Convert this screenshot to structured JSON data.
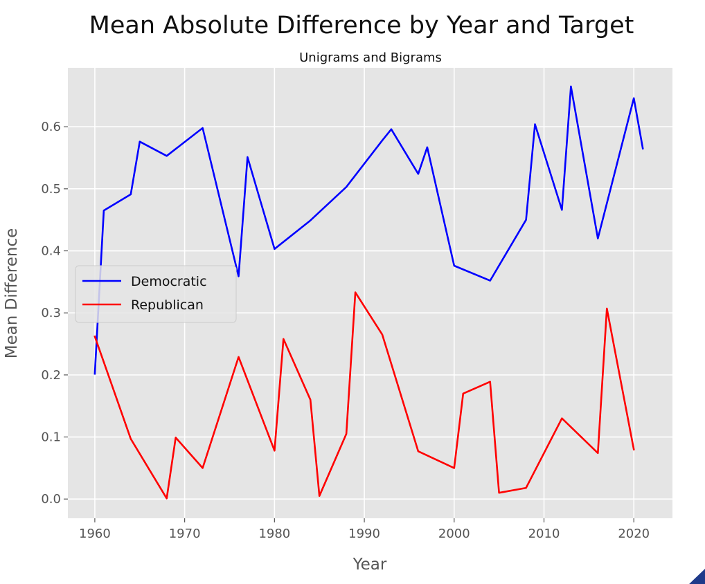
{
  "chart_data": {
    "type": "line",
    "title": "Mean Absolute Difference by Year and Target",
    "subtitle": "Unigrams and Bigrams",
    "xlabel": "Year",
    "ylabel": "Mean Difference",
    "xlim": [
      1957,
      2024.3
    ],
    "ylim": [
      -0.031,
      0.695
    ],
    "xticks": [
      1960,
      1970,
      1980,
      1990,
      2000,
      2010,
      2020
    ],
    "xtick_labels": [
      "1960",
      "1970",
      "1980",
      "1990",
      "2000",
      "2010",
      "2020"
    ],
    "yticks": [
      0.0,
      0.1,
      0.2,
      0.3,
      0.4,
      0.5,
      0.6
    ],
    "ytick_labels": [
      "0.0",
      "0.1",
      "0.2",
      "0.3",
      "0.4",
      "0.5",
      "0.6"
    ],
    "grid": true,
    "legend_position": "center-left",
    "series": [
      {
        "name": "Democratic",
        "color": "#0000ff",
        "x": [
          1960,
          1961,
          1964,
          1965,
          1968,
          1972,
          1976,
          1977,
          1980,
          1984,
          1988,
          1992,
          1993,
          1996,
          1997,
          2000,
          2004,
          2008,
          2009,
          2012,
          2013,
          2016,
          2020,
          2021
        ],
        "y": [
          0.202,
          0.465,
          0.491,
          0.576,
          0.553,
          0.598,
          0.359,
          0.551,
          0.403,
          0.449,
          0.503,
          0.578,
          0.596,
          0.524,
          0.567,
          0.376,
          0.352,
          0.45,
          0.604,
          0.466,
          0.665,
          0.42,
          0.646,
          0.565
        ]
      },
      {
        "name": "Republican",
        "color": "#ff0000",
        "x": [
          1960,
          1964,
          1968,
          1969,
          1972,
          1976,
          1980,
          1981,
          1984,
          1985,
          1988,
          1989,
          1992,
          1996,
          2000,
          2001,
          2004,
          2005,
          2008,
          2012,
          2016,
          2017,
          2020
        ],
        "y": [
          0.262,
          0.097,
          0.001,
          0.099,
          0.05,
          0.229,
          0.078,
          0.258,
          0.16,
          0.005,
          0.105,
          0.333,
          0.265,
          0.077,
          0.05,
          0.17,
          0.189,
          0.01,
          0.018,
          0.13,
          0.074,
          0.307,
          0.08
        ]
      }
    ]
  }
}
